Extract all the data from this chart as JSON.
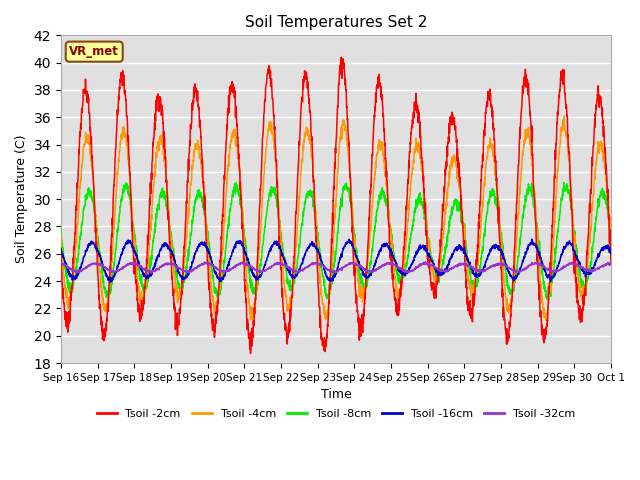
{
  "title": "Soil Temperatures Set 2",
  "xlabel": "Time",
  "ylabel": "Soil Temperature (C)",
  "ylim": [
    18,
    42
  ],
  "yticks": [
    18,
    20,
    22,
    24,
    26,
    28,
    30,
    32,
    34,
    36,
    38,
    40,
    42
  ],
  "annotation": "VR_met",
  "bg_color": "#e0e0e0",
  "legend": [
    {
      "label": "Tsoil -2cm",
      "color": "#ff0000"
    },
    {
      "label": "Tsoil -4cm",
      "color": "#ff9900"
    },
    {
      "label": "Tsoil -8cm",
      "color": "#00ee00"
    },
    {
      "label": "Tsoil -16cm",
      "color": "#0000cc"
    },
    {
      "label": "Tsoil -32cm",
      "color": "#9933cc"
    }
  ],
  "n_days": 15,
  "n_points_per_day": 144,
  "means": [
    29.5,
    28.5,
    27.0,
    25.5,
    25.0
  ],
  "amplitudes_2cm": [
    8.5,
    9.5,
    8.0,
    8.5,
    9.0,
    10.0,
    9.5,
    10.5,
    9.0,
    7.5,
    6.5,
    8.0,
    9.5,
    9.5,
    8.0
  ],
  "amplitudes_4cm": [
    6.0,
    6.5,
    6.0,
    5.5,
    6.5,
    7.0,
    6.5,
    7.0,
    5.5,
    5.5,
    4.5,
    5.5,
    6.5,
    7.0,
    5.5
  ],
  "amplitudes_8cm": [
    3.5,
    4.0,
    3.5,
    3.5,
    4.0,
    3.8,
    3.5,
    4.0,
    3.5,
    3.0,
    2.8,
    3.5,
    3.8,
    4.0,
    3.5
  ],
  "amplitudes_16cm": [
    1.3,
    1.4,
    1.2,
    1.3,
    1.4,
    1.3,
    1.2,
    1.4,
    1.2,
    1.0,
    1.0,
    1.1,
    1.3,
    1.3,
    1.0
  ],
  "amplitudes_32cm": [
    0.3,
    0.3,
    0.3,
    0.3,
    0.3,
    0.3,
    0.3,
    0.3,
    0.3,
    0.3,
    0.25,
    0.25,
    0.3,
    0.3,
    0.25
  ],
  "phase_2cm": 0.42,
  "phase_4cm": 0.46,
  "phase_8cm": 0.52,
  "phase_16cm": 0.6,
  "phase_32cm": 0.7,
  "tick_labels": [
    "Sep 16",
    "Sep 17",
    "Sep 18",
    "Sep 19",
    "Sep 20",
    "Sep 21",
    "Sep 22",
    "Sep 23",
    "Sep 24",
    "Sep 25",
    "Sep 26",
    "Sep 27",
    "Sep 28",
    "Sep 29",
    "Sep 30",
    "Oct 1"
  ]
}
